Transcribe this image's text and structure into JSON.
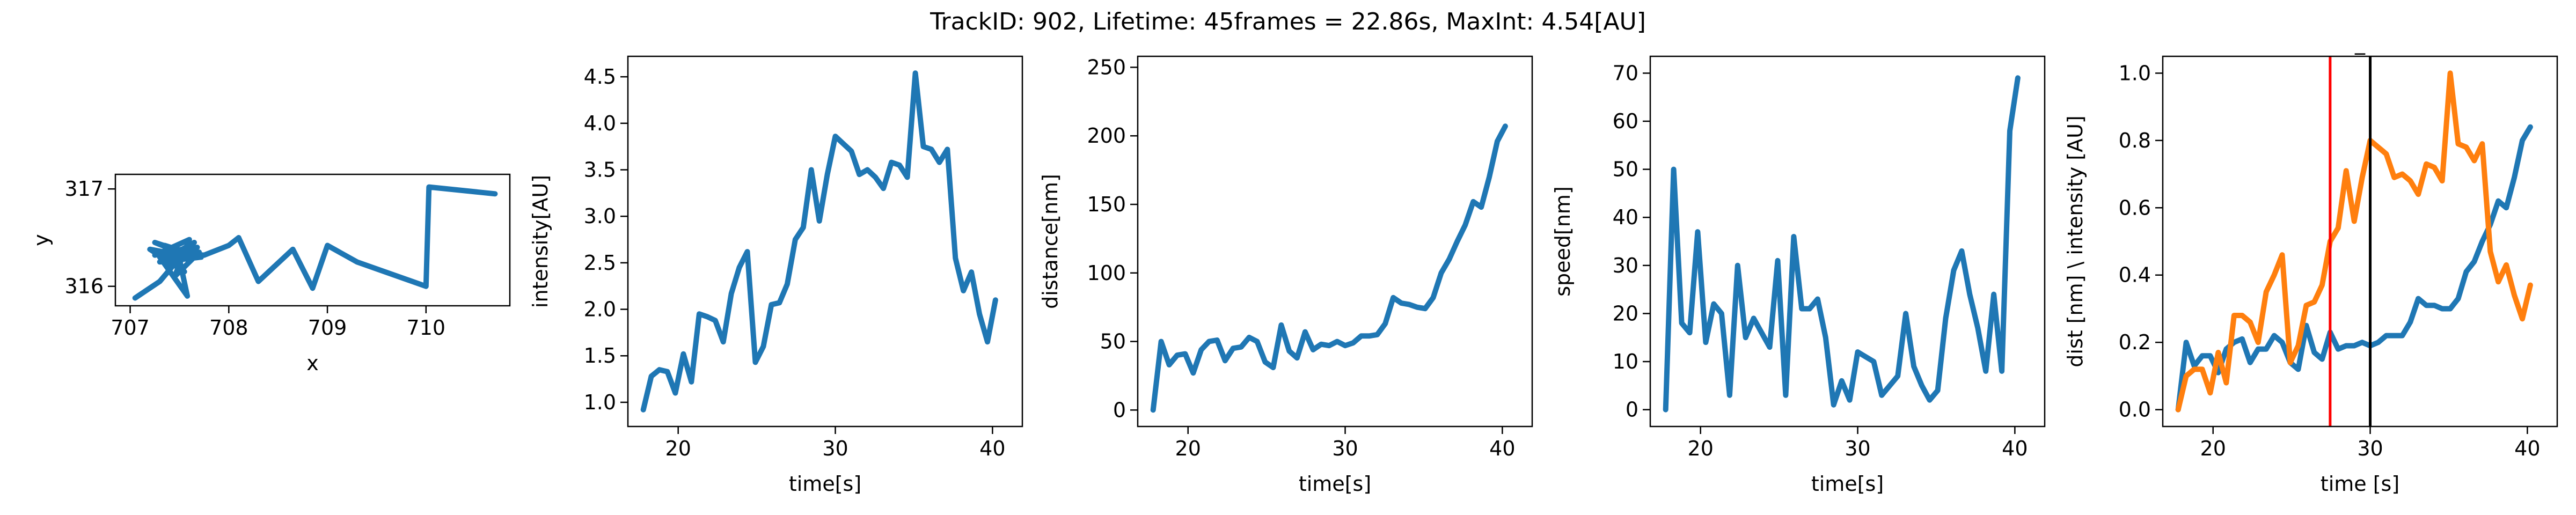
{
  "figure": {
    "title": "TrackID: 902, Lifetime: 45frames = 22.86s, MaxInt: 4.54[AU]"
  },
  "colors": {
    "blue": "#1f77b4",
    "orange": "#ff7f0e",
    "red": "#ff0000",
    "black": "#000000"
  },
  "chart_data": [
    {
      "id": "trajectory",
      "type": "line",
      "xlabel": "x",
      "ylabel": "y",
      "xlim": [
        706.85,
        710.85
      ],
      "ylim": [
        315.8,
        317.15
      ],
      "xticks": [
        707,
        708,
        709,
        710
      ],
      "yticks": [
        316,
        317
      ],
      "series": [
        {
          "color": "#1f77b4",
          "x": [
            707.05,
            707.3,
            707.55,
            707.25,
            707.62,
            707.2,
            707.55,
            707.35,
            707.72,
            707.3,
            707.65,
            707.4,
            707.68,
            707.25,
            707.6,
            707.45,
            707.7,
            707.5,
            707.58,
            707.3,
            707.65,
            707.35,
            707.75,
            708.0,
            708.1,
            708.3,
            708.65,
            708.85,
            709.0,
            709.3,
            710.0,
            710.03,
            710.7
          ],
          "y": [
            315.88,
            316.05,
            316.35,
            316.45,
            316.3,
            316.38,
            316.15,
            316.42,
            316.3,
            316.25,
            316.45,
            316.2,
            316.4,
            316.32,
            316.48,
            316.1,
            316.35,
            316.28,
            315.9,
            316.3,
            316.4,
            316.35,
            316.32,
            316.42,
            316.5,
            316.05,
            316.38,
            315.98,
            316.42,
            316.25,
            316.0,
            317.02,
            316.95
          ]
        }
      ]
    },
    {
      "id": "intensity",
      "type": "line",
      "xlabel": "time[s]",
      "ylabel": "intensity[AU]",
      "xlim": [
        16.8,
        41.9
      ],
      "ylim": [
        0.74,
        4.72
      ],
      "xticks": [
        20,
        30,
        40
      ],
      "yticks": [
        1.0,
        1.5,
        2.0,
        2.5,
        3.0,
        3.5,
        4.0,
        4.5
      ],
      "series": [
        {
          "color": "#1f77b4",
          "x": [
            17.78,
            18.29,
            18.8,
            19.31,
            19.82,
            20.33,
            20.84,
            21.34,
            21.85,
            22.36,
            22.87,
            23.38,
            23.89,
            24.4,
            24.91,
            25.42,
            25.93,
            26.44,
            26.94,
            27.45,
            27.96,
            28.47,
            28.98,
            29.49,
            30.0,
            30.51,
            31.02,
            31.53,
            32.04,
            32.55,
            33.06,
            33.57,
            34.08,
            34.58,
            35.09,
            35.6,
            36.11,
            36.62,
            37.13,
            37.64,
            38.15,
            38.66,
            39.17,
            39.68,
            40.19
          ],
          "y": [
            0.92,
            1.28,
            1.35,
            1.33,
            1.1,
            1.52,
            1.22,
            1.95,
            1.92,
            1.88,
            1.65,
            2.17,
            2.45,
            2.62,
            1.43,
            1.6,
            2.05,
            2.07,
            2.27,
            2.75,
            2.88,
            3.5,
            2.95,
            3.45,
            3.86,
            3.78,
            3.7,
            3.45,
            3.5,
            3.42,
            3.3,
            3.58,
            3.55,
            3.42,
            4.54,
            3.75,
            3.72,
            3.58,
            3.72,
            2.55,
            2.2,
            2.4,
            1.95,
            1.65,
            2.1
          ]
        }
      ]
    },
    {
      "id": "distance",
      "type": "line",
      "xlabel": "time[s]",
      "ylabel": "distance[nm]",
      "xlim": [
        16.8,
        41.9
      ],
      "ylim": [
        -12,
        258
      ],
      "xticks": [
        20,
        30,
        40
      ],
      "yticks": [
        0,
        50,
        100,
        150,
        200,
        250
      ],
      "series": [
        {
          "color": "#1f77b4",
          "x": [
            17.78,
            18.29,
            18.8,
            19.31,
            19.82,
            20.33,
            20.84,
            21.34,
            21.85,
            22.36,
            22.87,
            23.38,
            23.89,
            24.4,
            24.91,
            25.42,
            25.93,
            26.44,
            26.94,
            27.45,
            27.96,
            28.47,
            28.98,
            29.49,
            30.0,
            30.51,
            31.02,
            31.53,
            32.04,
            32.55,
            33.06,
            33.57,
            34.08,
            34.58,
            35.09,
            35.6,
            36.11,
            36.62,
            37.13,
            37.64,
            38.15,
            38.66,
            39.17,
            39.68,
            40.19
          ],
          "y": [
            0,
            50,
            33,
            40,
            41,
            27,
            44,
            50,
            51,
            36,
            45,
            46,
            53,
            50,
            35,
            31,
            62,
            43,
            38,
            57,
            44,
            48,
            47,
            50,
            47,
            49,
            54,
            54,
            55,
            63,
            82,
            78,
            77,
            75,
            74,
            82,
            100,
            110,
            123,
            135,
            152,
            148,
            170,
            196,
            207
          ]
        }
      ]
    },
    {
      "id": "speed",
      "type": "line",
      "xlabel": "time[s]",
      "ylabel": "speed[nm]",
      "xlim": [
        16.8,
        41.9
      ],
      "ylim": [
        -3.5,
        73.5
      ],
      "xticks": [
        20,
        30,
        40
      ],
      "yticks": [
        0,
        10,
        20,
        30,
        40,
        50,
        60,
        70
      ],
      "series": [
        {
          "color": "#1f77b4",
          "x": [
            17.78,
            18.29,
            18.8,
            19.31,
            19.82,
            20.33,
            20.84,
            21.34,
            21.85,
            22.36,
            22.87,
            23.38,
            23.89,
            24.4,
            24.91,
            25.42,
            25.93,
            26.44,
            26.94,
            27.45,
            27.96,
            28.47,
            28.98,
            29.49,
            30.0,
            30.51,
            31.02,
            31.53,
            32.04,
            32.55,
            33.06,
            33.57,
            34.08,
            34.58,
            35.09,
            35.6,
            36.11,
            36.62,
            37.13,
            37.64,
            38.15,
            38.66,
            39.17,
            39.68,
            40.19
          ],
          "y": [
            0,
            50,
            18,
            16,
            37,
            14,
            22,
            20,
            3,
            30,
            15,
            19,
            16,
            13,
            31,
            3,
            36,
            21,
            21,
            23,
            15,
            1,
            6,
            2,
            12,
            11,
            10,
            3,
            5,
            7,
            20,
            9,
            5,
            2,
            4,
            19,
            29,
            33,
            24,
            17,
            8,
            24,
            8,
            58,
            69
          ]
        }
      ]
    },
    {
      "id": "dist-intensity",
      "type": "line",
      "title": "_",
      "xlabel": "time [s]",
      "ylabel": "dist [nm] \\ intensity [AU]",
      "xlim": [
        16.8,
        41.9
      ],
      "ylim": [
        -0.05,
        1.05
      ],
      "xticks": [
        20,
        30,
        40
      ],
      "yticks": [
        0.0,
        0.2,
        0.4,
        0.6,
        0.8,
        1.0
      ],
      "vlines": [
        {
          "x": 27.45,
          "color": "#ff0000"
        },
        {
          "x": 30.0,
          "color": "#000000"
        }
      ],
      "series": [
        {
          "color": "#1f77b4",
          "x": [
            17.78,
            18.29,
            18.8,
            19.31,
            19.82,
            20.33,
            20.84,
            21.34,
            21.85,
            22.36,
            22.87,
            23.38,
            23.89,
            24.4,
            24.91,
            25.42,
            25.93,
            26.44,
            26.94,
            27.45,
            27.96,
            28.47,
            28.98,
            29.49,
            30.0,
            30.51,
            31.02,
            31.53,
            32.04,
            32.55,
            33.06,
            33.57,
            34.08,
            34.58,
            35.09,
            35.6,
            36.11,
            36.62,
            37.13,
            37.64,
            38.15,
            38.66,
            39.17,
            39.68,
            40.19
          ],
          "y": [
            0.0,
            0.2,
            0.13,
            0.16,
            0.16,
            0.11,
            0.18,
            0.2,
            0.21,
            0.14,
            0.18,
            0.18,
            0.22,
            0.2,
            0.14,
            0.12,
            0.25,
            0.17,
            0.15,
            0.23,
            0.18,
            0.19,
            0.19,
            0.2,
            0.19,
            0.2,
            0.22,
            0.22,
            0.22,
            0.26,
            0.33,
            0.31,
            0.31,
            0.3,
            0.3,
            0.33,
            0.41,
            0.44,
            0.5,
            0.55,
            0.62,
            0.6,
            0.69,
            0.8,
            0.84
          ]
        },
        {
          "color": "#ff7f0e",
          "x": [
            17.78,
            18.29,
            18.8,
            19.31,
            19.82,
            20.33,
            20.84,
            21.34,
            21.85,
            22.36,
            22.87,
            23.38,
            23.89,
            24.4,
            24.91,
            25.42,
            25.93,
            26.44,
            26.94,
            27.45,
            27.96,
            28.47,
            28.98,
            29.49,
            30.0,
            30.51,
            31.02,
            31.53,
            32.04,
            32.55,
            33.06,
            33.57,
            34.08,
            34.58,
            35.09,
            35.6,
            36.11,
            36.62,
            37.13,
            37.64,
            38.15,
            38.66,
            39.17,
            39.68,
            40.19
          ],
          "y": [
            0.0,
            0.1,
            0.12,
            0.12,
            0.05,
            0.17,
            0.08,
            0.28,
            0.28,
            0.26,
            0.2,
            0.35,
            0.4,
            0.46,
            0.14,
            0.19,
            0.31,
            0.32,
            0.37,
            0.5,
            0.54,
            0.71,
            0.56,
            0.69,
            0.8,
            0.78,
            0.76,
            0.69,
            0.7,
            0.68,
            0.64,
            0.73,
            0.72,
            0.68,
            1.0,
            0.79,
            0.78,
            0.74,
            0.79,
            0.47,
            0.38,
            0.43,
            0.34,
            0.27,
            0.37
          ]
        }
      ]
    }
  ]
}
